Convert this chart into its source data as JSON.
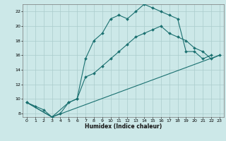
{
  "xlabel": "Humidex (Indice chaleur)",
  "bg_color": "#cce8e8",
  "grid_color": "#aacccc",
  "line_color": "#1a7070",
  "xlim": [
    -0.5,
    23.5
  ],
  "ylim": [
    7.5,
    23.0
  ],
  "xticks": [
    0,
    1,
    2,
    3,
    4,
    5,
    6,
    7,
    8,
    9,
    10,
    11,
    12,
    13,
    14,
    15,
    16,
    17,
    18,
    19,
    20,
    21,
    22,
    23
  ],
  "yticks": [
    8,
    10,
    12,
    14,
    16,
    18,
    20,
    22
  ],
  "line1_x": [
    0,
    1,
    2,
    3,
    4,
    5,
    6,
    7,
    8,
    9,
    10,
    11,
    12,
    13,
    14,
    15,
    16,
    17,
    18,
    19,
    20,
    21,
    22
  ],
  "line1_y": [
    9.5,
    9.0,
    8.5,
    7.5,
    8.0,
    9.5,
    10.0,
    15.5,
    18.0,
    19.0,
    21.0,
    21.5,
    21.0,
    22.0,
    23.0,
    22.5,
    22.0,
    21.5,
    21.0,
    16.5,
    16.5,
    15.5,
    16.0
  ],
  "line2_x": [
    0,
    3,
    5,
    6,
    7,
    8,
    9,
    10,
    11,
    12,
    13,
    14,
    15,
    16,
    17,
    18,
    19,
    20,
    21,
    22,
    23
  ],
  "line2_y": [
    9.5,
    7.5,
    9.5,
    10.0,
    13.0,
    13.5,
    14.5,
    15.5,
    16.5,
    17.5,
    18.5,
    19.0,
    19.5,
    20.0,
    19.0,
    18.5,
    18.0,
    17.0,
    16.5,
    15.5,
    16.0
  ],
  "line3_x": [
    0,
    3,
    23
  ],
  "line3_y": [
    9.5,
    7.5,
    16.0
  ]
}
